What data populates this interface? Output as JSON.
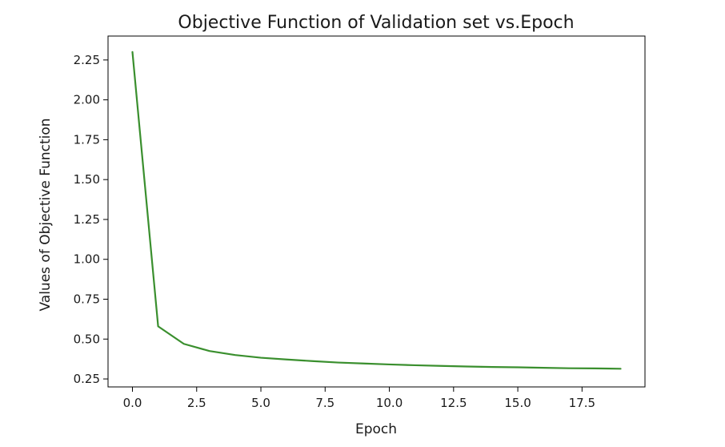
{
  "chart_data": {
    "type": "line",
    "title": "Objective Function of Validation set vs.Epoch",
    "xlabel": "Epoch",
    "ylabel": "Values of Objective Function",
    "xlim": [
      -0.95,
      19.95
    ],
    "ylim": [
      0.2,
      2.4
    ],
    "xticks": [
      0.0,
      2.5,
      5.0,
      7.5,
      10.0,
      12.5,
      15.0,
      17.5
    ],
    "xtick_labels": [
      "0.0",
      "2.5",
      "5.0",
      "7.5",
      "10.0",
      "12.5",
      "15.0",
      "17.5"
    ],
    "yticks": [
      0.25,
      0.5,
      0.75,
      1.0,
      1.25,
      1.5,
      1.75,
      2.0,
      2.25
    ],
    "ytick_labels": [
      "0.25",
      "0.50",
      "0.75",
      "1.00",
      "1.25",
      "1.50",
      "1.75",
      "2.00",
      "2.25"
    ],
    "grid": false,
    "legend": "none",
    "series": [
      {
        "color": "#3a8f2e",
        "x": [
          0,
          1,
          2,
          3,
          4,
          5,
          6,
          7,
          8,
          9,
          10,
          11,
          12,
          13,
          14,
          15,
          16,
          17,
          18,
          19
        ],
        "y": [
          2.3,
          0.58,
          0.47,
          0.425,
          0.4,
          0.383,
          0.372,
          0.362,
          0.353,
          0.347,
          0.341,
          0.336,
          0.332,
          0.328,
          0.325,
          0.323,
          0.32,
          0.317,
          0.316,
          0.314
        ]
      }
    ]
  }
}
